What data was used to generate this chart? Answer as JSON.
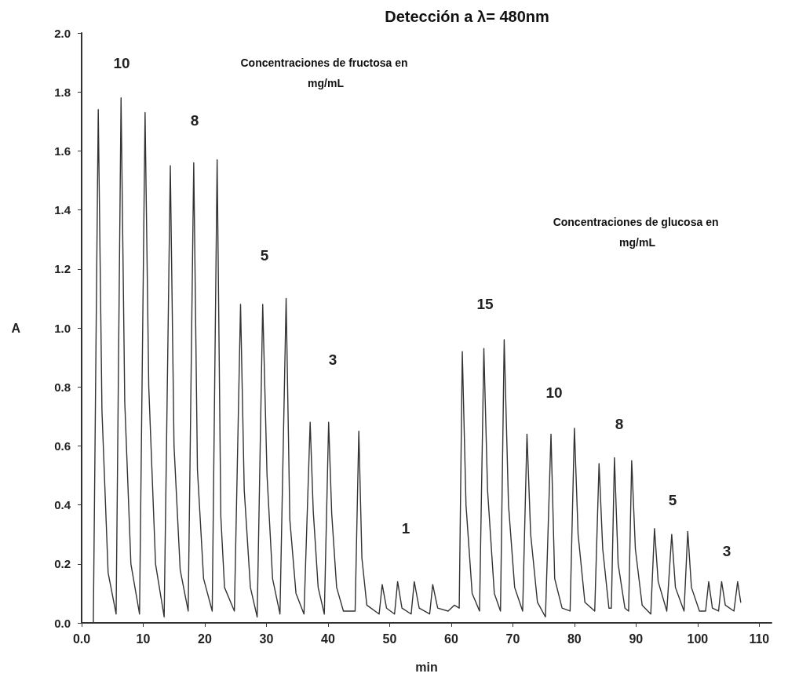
{
  "chart_data": {
    "type": "line",
    "title": "Detección a λ= 480nm",
    "xlabel": "min",
    "ylabel": "A",
    "x": [
      1.9,
      2.7,
      3.3,
      4.3,
      5.6,
      6.4,
      7.0,
      8.0,
      9.4,
      10.3,
      10.9,
      12.0,
      13.4,
      14.4,
      15.0,
      16.0,
      17.3,
      18.2,
      18.8,
      19.8,
      21.2,
      22.0,
      22.6,
      23.2,
      24.8,
      25.8,
      26.4,
      27.4,
      28.5,
      29.4,
      30.1,
      31.0,
      32.2,
      33.2,
      33.8,
      34.8,
      36.1,
      37.1,
      37.6,
      38.4,
      39.4,
      40.1,
      40.6,
      41.4,
      42.5,
      44.4,
      45.0,
      45.5,
      46.3,
      48.3,
      48.8,
      49.5,
      50.8,
      51.3,
      52.0,
      53.5,
      54.0,
      54.8,
      56.5,
      57.0,
      57.8,
      59.5,
      60.5,
      61.3,
      61.8,
      62.4,
      63.4,
      64.6,
      65.3,
      65.9,
      67.0,
      68.0,
      68.6,
      69.3,
      70.3,
      71.6,
      72.3,
      72.9,
      74.0,
      75.3,
      76.2,
      76.8,
      78.0,
      79.3,
      80.0,
      80.6,
      81.7,
      83.3,
      84.0,
      84.6,
      85.6,
      86.0,
      86.5,
      87.1,
      88.2,
      88.8,
      89.3,
      89.9,
      91.0,
      92.4,
      93.0,
      93.6,
      95.0,
      95.8,
      96.4,
      97.8,
      98.4,
      99.0,
      100.3,
      101.3,
      101.8,
      102.4,
      103.4,
      103.9,
      104.5,
      105.9,
      106.5,
      107.0
    ],
    "series": [
      {
        "color": "#333333",
        "values": [
          0.0,
          1.74,
          0.72,
          0.17,
          0.03,
          1.78,
          0.75,
          0.2,
          0.03,
          1.73,
          0.8,
          0.2,
          0.02,
          1.55,
          0.6,
          0.18,
          0.04,
          1.56,
          0.52,
          0.15,
          0.04,
          1.57,
          0.36,
          0.12,
          0.04,
          1.08,
          0.45,
          0.12,
          0.02,
          1.08,
          0.5,
          0.15,
          0.03,
          1.1,
          0.35,
          0.1,
          0.03,
          0.68,
          0.38,
          0.12,
          0.03,
          0.68,
          0.37,
          0.12,
          0.04,
          0.04,
          0.65,
          0.22,
          0.06,
          0.03,
          0.13,
          0.05,
          0.03,
          0.14,
          0.05,
          0.03,
          0.14,
          0.05,
          0.03,
          0.13,
          0.05,
          0.04,
          0.06,
          0.05,
          0.92,
          0.4,
          0.1,
          0.04,
          0.93,
          0.45,
          0.1,
          0.04,
          0.96,
          0.4,
          0.12,
          0.04,
          0.64,
          0.3,
          0.07,
          0.02,
          0.64,
          0.15,
          0.05,
          0.04,
          0.66,
          0.3,
          0.07,
          0.04,
          0.54,
          0.25,
          0.05,
          0.05,
          0.56,
          0.2,
          0.05,
          0.04,
          0.55,
          0.25,
          0.06,
          0.03,
          0.32,
          0.14,
          0.04,
          0.3,
          0.12,
          0.04,
          0.31,
          0.12,
          0.04,
          0.04,
          0.14,
          0.05,
          0.04,
          0.14,
          0.06,
          0.04,
          0.14,
          0.07
        ]
      }
    ],
    "xlim": [
      0,
      112
    ],
    "xticks": [
      {
        "value": 0,
        "label": "0.0"
      },
      10,
      20,
      30,
      40,
      50,
      60,
      70,
      80,
      90,
      100,
      110
    ],
    "ylim": [
      0,
      2.0
    ],
    "yticks": [
      {
        "value": 0,
        "label": "0.0"
      },
      {
        "value": 0.2,
        "label": "0.2"
      },
      {
        "value": 0.4,
        "label": "0.4"
      },
      {
        "value": 0.6,
        "label": "0.6"
      },
      {
        "value": 0.8,
        "label": "0.8"
      },
      {
        "value": 1.0,
        "label": "1.0"
      },
      {
        "value": 1.2,
        "label": "1.2"
      },
      {
        "value": 1.4,
        "label": "1.4"
      },
      {
        "value": 1.6,
        "label": "1.6"
      },
      {
        "value": 1.8,
        "label": "1.8"
      },
      {
        "value": 2.0,
        "label": "2.0"
      }
    ],
    "grid": false,
    "marker": "none",
    "line_style": "solid",
    "annotations": [
      "10",
      "8",
      "5",
      "3",
      "1",
      "15",
      "10",
      "8",
      "5",
      "3",
      "Concentraciones de fructosa en mg/mL",
      "Concentraciones de glucosa en mg/mL"
    ]
  }
}
